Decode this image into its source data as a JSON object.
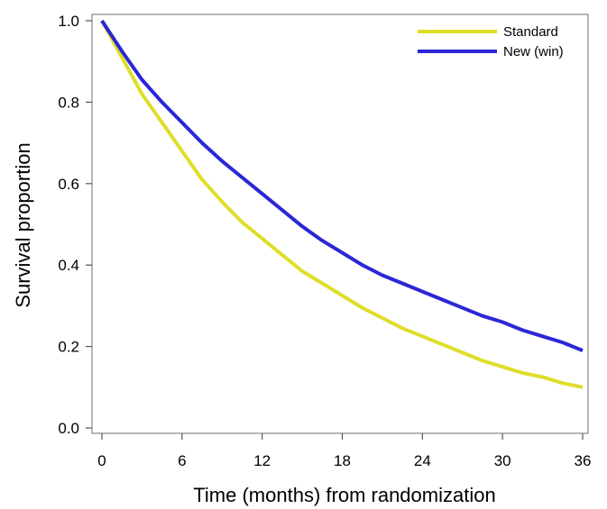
{
  "chart_data": {
    "type": "line",
    "title": "",
    "xlabel": "Time (months) from randomization",
    "ylabel": "Survival proportion",
    "xlim": [
      0,
      36
    ],
    "ylim": [
      0,
      1.0
    ],
    "xticks": [
      0,
      6,
      12,
      18,
      24,
      30,
      36
    ],
    "xtick_labels": [
      "0",
      "6",
      "12",
      "18",
      "24",
      "30",
      "36"
    ],
    "yticks": [
      0,
      0.2,
      0.4,
      0.6,
      0.8,
      1.0
    ],
    "ytick_labels": [
      "0.0",
      "0.2",
      "0.4",
      "0.6",
      "0.8",
      "1.0"
    ],
    "grid": false,
    "legend_position": "top-right",
    "series": [
      {
        "name": "Standard",
        "color": "#dede2a",
        "x": [
          0,
          1.5,
          3,
          4.5,
          6,
          7.5,
          9,
          10.5,
          12,
          13.5,
          15,
          16.5,
          18,
          19.5,
          21,
          22.5,
          24,
          25.5,
          27,
          28.5,
          30,
          31.5,
          33,
          34.5,
          36
        ],
        "y": [
          1.0,
          0.91,
          0.82,
          0.75,
          0.68,
          0.61,
          0.555,
          0.505,
          0.465,
          0.425,
          0.385,
          0.355,
          0.325,
          0.295,
          0.27,
          0.245,
          0.225,
          0.205,
          0.185,
          0.165,
          0.15,
          0.135,
          0.125,
          0.11,
          0.1
        ]
      },
      {
        "name": "New (win)",
        "color": "#2b27d6",
        "x": [
          0,
          1.5,
          3,
          4.5,
          6,
          7.5,
          9,
          10.5,
          12,
          13.5,
          15,
          16.5,
          18,
          19.5,
          21,
          22.5,
          24,
          25.5,
          27,
          28.5,
          30,
          31.5,
          33,
          34.5,
          36
        ],
        "y": [
          1.0,
          0.925,
          0.855,
          0.8,
          0.75,
          0.7,
          0.655,
          0.615,
          0.575,
          0.535,
          0.495,
          0.46,
          0.43,
          0.4,
          0.375,
          0.355,
          0.335,
          0.315,
          0.295,
          0.275,
          0.26,
          0.24,
          0.225,
          0.21,
          0.19
        ]
      }
    ]
  }
}
